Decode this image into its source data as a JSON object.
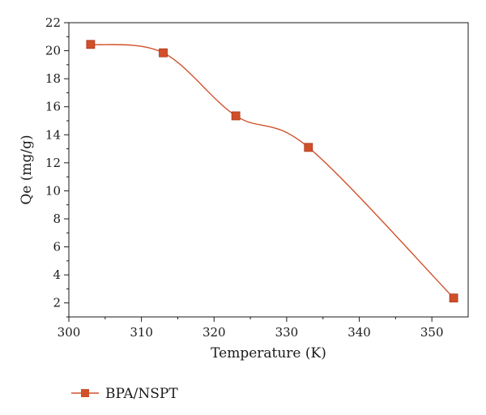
{
  "chart_data": {
    "type": "line",
    "xlabel": "Temperature (K)",
    "ylabel": "Qe (mg/g)",
    "xlim": [
      300,
      355
    ],
    "ylim": [
      1,
      22
    ],
    "x_ticks": [
      300,
      310,
      320,
      330,
      340,
      350
    ],
    "y_ticks": [
      2,
      4,
      6,
      8,
      10,
      12,
      14,
      16,
      18,
      20,
      22
    ],
    "series": [
      {
        "name": "BPA/NSPT",
        "color": "#d1502a",
        "marker": "square",
        "x": [
          303,
          313,
          323,
          333,
          353
        ],
        "y": [
          20.45,
          19.85,
          15.35,
          13.1,
          2.35
        ]
      }
    ],
    "legend_position": "bottom-left",
    "grid": false
  }
}
